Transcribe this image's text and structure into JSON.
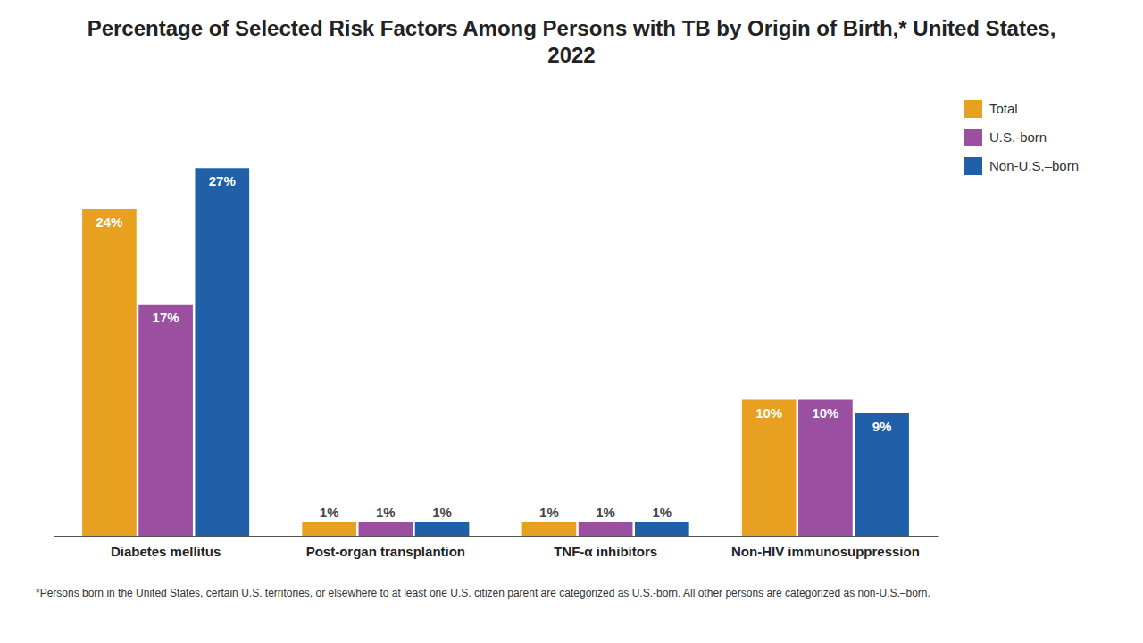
{
  "chart_data": {
    "type": "bar",
    "title": "Percentage of Selected Risk Factors Among Persons with TB by Origin of Birth,* United States, 2022",
    "categories": [
      "Diabetes mellitus",
      "Post-organ transplantion",
      "TNF-α inhibitors",
      "Non-HIV immunosuppression"
    ],
    "series": [
      {
        "name": "Total",
        "color": "#E8A020",
        "values": [
          24,
          1,
          1,
          10
        ],
        "value_labels": [
          "24%",
          "1%",
          "1%",
          "10%"
        ]
      },
      {
        "name": "U.S.-born",
        "color": "#9B4FA0",
        "values": [
          17,
          1,
          1,
          10
        ],
        "value_labels": [
          "17%",
          "1%",
          "1%",
          "10%"
        ]
      },
      {
        "name": "Non-U.S.–born",
        "color": "#2060A8",
        "values": [
          27,
          1,
          1,
          9
        ],
        "value_labels": [
          "27%",
          "1%",
          "1%",
          "9%"
        ]
      }
    ],
    "ylim": [
      0,
      32
    ],
    "grid": false,
    "legend": "right",
    "data_labels": true,
    "tick_labels": "x",
    "annotations": [
      "*Persons born in the United States, certain U.S. territories, or elsewhere to at least one U.S. citizen parent are categorized as U.S.-born. All other persons are categorized as non-U.S.–born."
    ]
  }
}
